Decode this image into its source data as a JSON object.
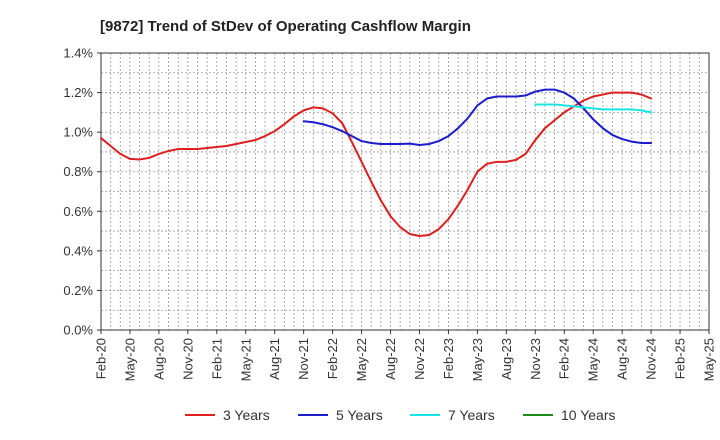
{
  "chart_data": {
    "type": "line",
    "title": "[9872]  Trend of StDev of Operating Cashflow Margin",
    "xlabel": "",
    "ylabel": "",
    "ylim": [
      0,
      1.4
    ],
    "y_ticks": [
      0,
      0.2,
      0.4,
      0.6,
      0.8,
      1.0,
      1.2,
      1.4
    ],
    "y_tick_labels": [
      "0.0%",
      "0.2%",
      "0.4%",
      "0.6%",
      "0.8%",
      "1.0%",
      "1.2%",
      "1.4%"
    ],
    "x_tick_labels": [
      "Feb-20",
      "May-20",
      "Aug-20",
      "Nov-20",
      "Feb-21",
      "May-21",
      "Aug-21",
      "Nov-21",
      "Feb-22",
      "May-22",
      "Aug-22",
      "Nov-22",
      "Feb-23",
      "May-23",
      "Aug-23",
      "Nov-23",
      "Feb-24",
      "May-24",
      "Aug-24",
      "Nov-24",
      "Feb-25",
      "May-25"
    ],
    "grid": true,
    "legend_position": "bottom",
    "series": [
      {
        "name": "3 Years",
        "color": "#dd1f1f",
        "x": [
          "Feb-20",
          "Mar-20",
          "Apr-20",
          "May-20",
          "Jun-20",
          "Jul-20",
          "Aug-20",
          "Sep-20",
          "Oct-20",
          "Nov-20",
          "Dec-20",
          "Jan-21",
          "Feb-21",
          "Mar-21",
          "Apr-21",
          "May-21",
          "Jun-21",
          "Jul-21",
          "Aug-21",
          "Sep-21",
          "Oct-21",
          "Nov-21",
          "Dec-21",
          "Jan-22",
          "Feb-22",
          "Mar-22",
          "Apr-22",
          "May-22",
          "Jun-22",
          "Jul-22",
          "Aug-22",
          "Sep-22",
          "Oct-22",
          "Nov-22",
          "Dec-22",
          "Jan-23",
          "Feb-23",
          "Mar-23",
          "Apr-23",
          "May-23",
          "Jun-23",
          "Jul-23",
          "Aug-23",
          "Sep-23",
          "Oct-23",
          "Nov-23",
          "Dec-23",
          "Jan-24",
          "Feb-24",
          "Mar-24",
          "Apr-24",
          "May-24",
          "Jun-24",
          "Jul-24",
          "Aug-24",
          "Sep-24",
          "Oct-24",
          "Nov-24"
        ],
        "values": [
          0.97,
          0.93,
          0.89,
          0.865,
          0.862,
          0.87,
          0.89,
          0.905,
          0.915,
          0.915,
          0.915,
          0.92,
          0.925,
          0.93,
          0.94,
          0.95,
          0.96,
          0.98,
          1.005,
          1.04,
          1.08,
          1.11,
          1.125,
          1.12,
          1.095,
          1.045,
          0.95,
          0.85,
          0.75,
          0.655,
          0.575,
          0.52,
          0.485,
          0.475,
          0.48,
          0.51,
          0.56,
          0.63,
          0.71,
          0.8,
          0.84,
          0.85,
          0.85,
          0.86,
          0.89,
          0.96,
          1.02,
          1.06,
          1.1,
          1.13,
          1.16,
          1.18,
          1.19,
          1.2,
          1.2,
          1.2,
          1.19,
          1.17
        ]
      },
      {
        "name": "5 Years",
        "color": "#1d1dcc",
        "x": [
          "Nov-21",
          "Dec-21",
          "Jan-22",
          "Feb-22",
          "Mar-22",
          "Apr-22",
          "May-22",
          "Jun-22",
          "Jul-22",
          "Aug-22",
          "Sep-22",
          "Oct-22",
          "Nov-22",
          "Dec-22",
          "Jan-23",
          "Feb-23",
          "Mar-23",
          "Apr-23",
          "May-23",
          "Jun-23",
          "Jul-23",
          "Aug-23",
          "Sep-23",
          "Oct-23",
          "Nov-23",
          "Dec-23",
          "Jan-24",
          "Feb-24",
          "Mar-24",
          "Apr-24",
          "May-24",
          "Jun-24",
          "Jul-24",
          "Aug-24",
          "Sep-24",
          "Oct-24",
          "Nov-24"
        ],
        "values": [
          1.055,
          1.05,
          1.04,
          1.025,
          1.005,
          0.98,
          0.955,
          0.945,
          0.94,
          0.94,
          0.94,
          0.942,
          0.935,
          0.94,
          0.955,
          0.98,
          1.02,
          1.07,
          1.135,
          1.17,
          1.18,
          1.18,
          1.18,
          1.185,
          1.205,
          1.215,
          1.215,
          1.2,
          1.17,
          1.12,
          1.065,
          1.02,
          0.985,
          0.965,
          0.952,
          0.945,
          0.945
        ]
      },
      {
        "name": "7 Years",
        "color": "#17e6e6",
        "x": [
          "Nov-23",
          "Dec-23",
          "Jan-24",
          "Feb-24",
          "Mar-24",
          "Apr-24",
          "May-24",
          "Jun-24",
          "Jul-24",
          "Aug-24",
          "Sep-24",
          "Oct-24",
          "Nov-24"
        ],
        "values": [
          1.14,
          1.14,
          1.14,
          1.135,
          1.13,
          1.125,
          1.12,
          1.115,
          1.115,
          1.115,
          1.115,
          1.11,
          1.1
        ]
      },
      {
        "name": "10 Years",
        "color": "#1a8c1a",
        "x": [],
        "values": []
      }
    ]
  }
}
